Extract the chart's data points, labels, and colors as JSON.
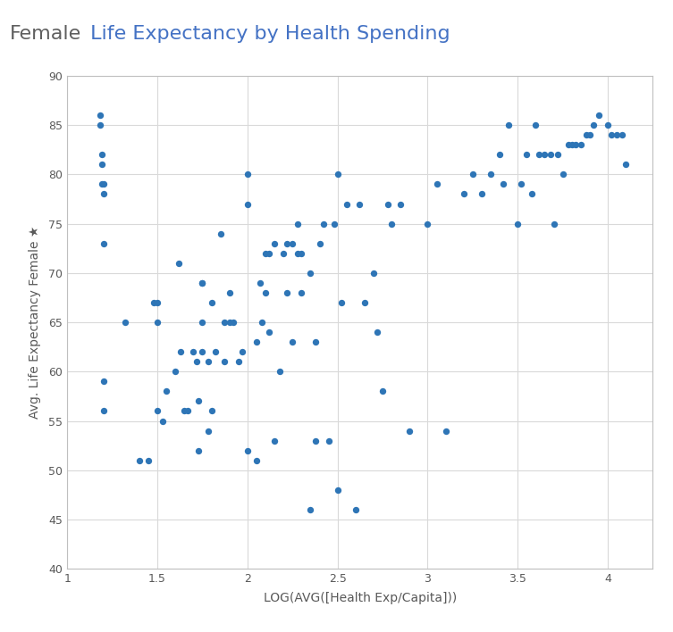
{
  "title_part1": "Female",
  "title_part2": " Life Expectancy by Health Spending",
  "title_color1": "#5F5F5F",
  "title_color2": "#4472C4",
  "xlabel": "LOG(AVG([Health Exp/Capita]))",
  "ylabel": "Avg. Life Expectancy Female ★",
  "dot_color": "#2E75B6",
  "bg_color": "#FFFFFF",
  "plot_bg": "#FFFFFF",
  "grid_color": "#D9D9D9",
  "border_color": "#BFBFBF",
  "xlim": [
    1,
    4.25
  ],
  "ylim": [
    40,
    90
  ],
  "xticks": [
    1,
    1.5,
    2,
    2.5,
    3,
    3.5,
    4
  ],
  "xtick_labels": [
    "1",
    "1.5",
    "2",
    "2.5",
    "3",
    "3.5",
    "4"
  ],
  "yticks": [
    40,
    45,
    50,
    55,
    60,
    65,
    70,
    75,
    80,
    85,
    90
  ],
  "ytick_labels": [
    "40",
    "45",
    "50",
    "55",
    "60",
    "65",
    "70",
    "75",
    "80",
    "85",
    "90"
  ],
  "title_fontsize": 16,
  "label_fontsize": 10,
  "tick_fontsize": 9,
  "dot_size": 28,
  "x": [
    1.18,
    1.18,
    1.19,
    1.19,
    1.19,
    1.2,
    1.2,
    1.2,
    1.2,
    1.2,
    1.32,
    1.4,
    1.45,
    1.48,
    1.5,
    1.5,
    1.5,
    1.53,
    1.55,
    1.6,
    1.62,
    1.63,
    1.65,
    1.67,
    1.7,
    1.72,
    1.73,
    1.73,
    1.75,
    1.75,
    1.75,
    1.75,
    1.78,
    1.78,
    1.8,
    1.8,
    1.82,
    1.85,
    1.87,
    1.87,
    1.9,
    1.9,
    1.92,
    1.95,
    1.97,
    2.0,
    2.0,
    2.0,
    2.05,
    2.05,
    2.07,
    2.08,
    2.1,
    2.1,
    2.12,
    2.12,
    2.15,
    2.15,
    2.18,
    2.2,
    2.22,
    2.22,
    2.25,
    2.25,
    2.28,
    2.28,
    2.3,
    2.3,
    2.35,
    2.35,
    2.38,
    2.38,
    2.4,
    2.42,
    2.45,
    2.48,
    2.5,
    2.5,
    2.52,
    2.55,
    2.6,
    2.62,
    2.65,
    2.7,
    2.72,
    2.75,
    2.78,
    2.8,
    2.85,
    2.9,
    3.0,
    3.05,
    3.1,
    3.2,
    3.25,
    3.3,
    3.35,
    3.4,
    3.42,
    3.45,
    3.5,
    3.52,
    3.55,
    3.58,
    3.6,
    3.62,
    3.65,
    3.68,
    3.7,
    3.72,
    3.75,
    3.78,
    3.8,
    3.82,
    3.85,
    3.88,
    3.9,
    3.92,
    3.95,
    4.0,
    4.02,
    4.05,
    4.08,
    4.1
  ],
  "y": [
    86,
    85,
    82,
    81,
    79,
    79,
    78,
    73,
    59,
    56,
    65,
    51,
    51,
    67,
    67,
    65,
    56,
    55,
    58,
    60,
    71,
    62,
    56,
    56,
    62,
    61,
    57,
    52,
    69,
    69,
    65,
    62,
    61,
    54,
    67,
    56,
    62,
    74,
    65,
    61,
    68,
    65,
    65,
    61,
    62,
    80,
    77,
    52,
    63,
    51,
    69,
    65,
    72,
    68,
    72,
    64,
    73,
    53,
    60,
    72,
    73,
    68,
    73,
    63,
    75,
    72,
    72,
    68,
    70,
    46,
    53,
    63,
    73,
    75,
    53,
    75,
    48,
    80,
    67,
    77,
    46,
    77,
    67,
    70,
    64,
    58,
    77,
    75,
    77,
    54,
    75,
    79,
    54,
    78,
    80,
    78,
    80,
    82,
    79,
    85,
    75,
    79,
    82,
    78,
    85,
    82,
    82,
    82,
    75,
    82,
    80,
    83,
    83,
    83,
    83,
    84,
    84,
    85,
    86,
    85,
    84,
    84,
    84,
    81
  ]
}
